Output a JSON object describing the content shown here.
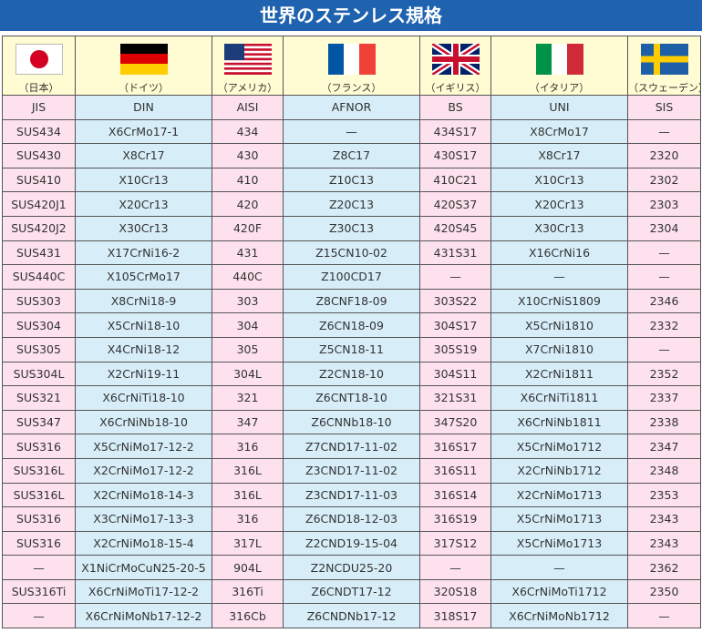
{
  "header": {
    "title": "世界のステンレス規格"
  },
  "table": {
    "countries": [
      "（日本）",
      "（ドイツ）",
      "（アメリカ）",
      "（フランス）",
      "（イギリス）",
      "（イタリア）",
      "（スウェーデン）"
    ],
    "columns": [
      "JIS",
      "DIN",
      "AISI",
      "AFNOR",
      "BS",
      "UNI",
      "SIS"
    ],
    "rows": [
      [
        "SUS434",
        "X6CrMo17-1",
        "434",
        "—",
        "434S17",
        "X8CrMo17",
        "—"
      ],
      [
        "SUS430",
        "X8Cr17",
        "430",
        "Z8C17",
        "430S17",
        "X8Cr17",
        "2320"
      ],
      [
        "SUS410",
        "X10Cr13",
        "410",
        "Z10C13",
        "410C21",
        "X10Cr13",
        "2302"
      ],
      [
        "SUS420J1",
        "X20Cr13",
        "420",
        "Z20C13",
        "420S37",
        "X20Cr13",
        "2303"
      ],
      [
        "SUS420J2",
        "X30Cr13",
        "420F",
        "Z30C13",
        "420S45",
        "X30Cr13",
        "2304"
      ],
      [
        "SUS431",
        "X17CrNi16-2",
        "431",
        "Z15CN10-02",
        "431S31",
        "X16CrNi16",
        "—"
      ],
      [
        "SUS440C",
        "X105CrMo17",
        "440C",
        "Z100CD17",
        "—",
        "—",
        "—"
      ],
      [
        "SUS303",
        "X8CrNi18-9",
        "303",
        "Z8CNF18-09",
        "303S22",
        "X10CrNiS1809",
        "2346"
      ],
      [
        "SUS304",
        "X5CrNi18-10",
        "304",
        "Z6CN18-09",
        "304S17",
        "X5CrNi1810",
        "2332"
      ],
      [
        "SUS305",
        "X4CrNi18-12",
        "305",
        "Z5CN18-11",
        "305S19",
        "X7CrNi1810",
        "—"
      ],
      [
        "SUS304L",
        "X2CrNi19-11",
        "304L",
        "Z2CN18-10",
        "304S11",
        "X2CrNi1811",
        "2352"
      ],
      [
        "SUS321",
        "X6CrNiTi18-10",
        "321",
        "Z6CNT18-10",
        "321S31",
        "X6CrNiTi1811",
        "2337"
      ],
      [
        "SUS347",
        "X6CrNiNb18-10",
        "347",
        "Z6CNNb18-10",
        "347S20",
        "X6CrNiNb1811",
        "2338"
      ],
      [
        "SUS316",
        "X5CrNiMo17-12-2",
        "316",
        "Z7CND17-11-02",
        "316S17",
        "X5CrNiMo1712",
        "2347"
      ],
      [
        "SUS316L",
        "X2CrNiMo17-12-2",
        "316L",
        "Z3CND17-11-02",
        "316S11",
        "X2CrNiNb1712",
        "2348"
      ],
      [
        "SUS316L",
        "X2CrNiMo18-14-3",
        "316L",
        "Z3CND17-11-03",
        "316S14",
        "X2CrNiMo1713",
        "2353"
      ],
      [
        "SUS316",
        "X3CrNiMo17-13-3",
        "316",
        "Z6CND18-12-03",
        "316S19",
        "X5CrNiMo1713",
        "2343"
      ],
      [
        "SUS316",
        "X2CrNiMo18-15-4",
        "317L",
        "Z2CND19-15-04",
        "317S12",
        "X5CrNiMo1713",
        "2343"
      ],
      [
        "—",
        "X1NiCrMoCuN25-20-5",
        "904L",
        "Z2NCDU25-20",
        "—",
        "—",
        "2362"
      ],
      [
        "SUS316Ti",
        "X6CrNiMoTi17-12-2",
        "316Ti",
        "Z6CNDT17-12",
        "320S18",
        "X6CrNiMoTi1712",
        "2350"
      ],
      [
        "—",
        "X6CrNiMoNb17-12-2",
        "316Cb",
        "Z6CNDNb17-12",
        "318S17",
        "X6CrNiMoNb1712",
        "—"
      ]
    ]
  }
}
